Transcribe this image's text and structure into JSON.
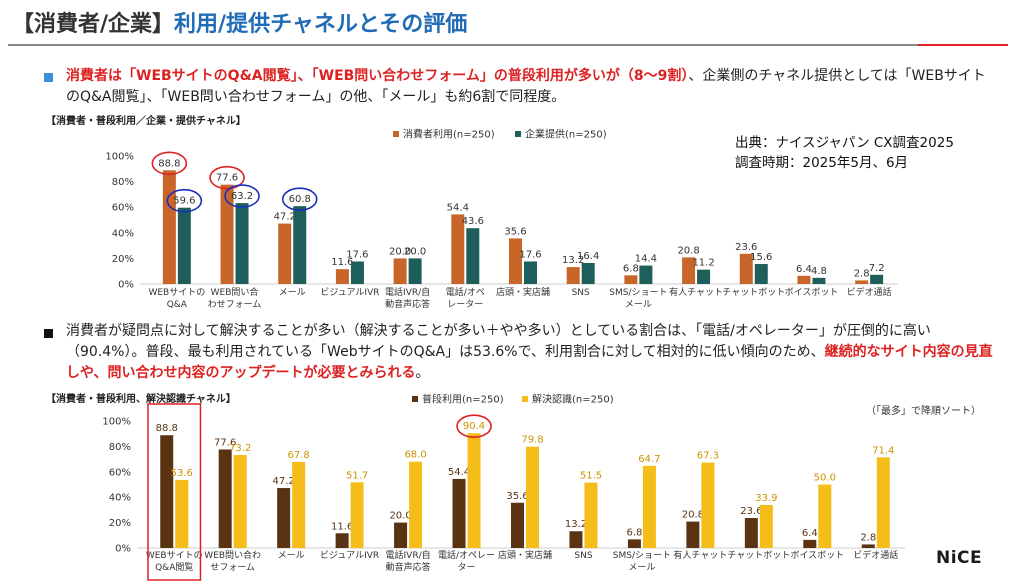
{
  "header": {
    "title_part1": "【消費者/企業】",
    "title_part2": "利用/提供チャネルとその評価"
  },
  "section1": {
    "text_red": "消費者は「WEBサイトのQ&A閲覧」、「WEB問い合わせフォーム」の普段利用が多いが（8～9割）",
    "text_rest": "、企業側のチャネル提供としては「WEBサイトのQ&A閲覧」、「WEB問い合わせフォーム」の他、「メール」も約6割で同程度。",
    "chart_label": "【消費者・普段利用／企業・提供チャネル】"
  },
  "source": {
    "line1": "出典：ナイスジャパン CX調査2025",
    "line2": "調査時期：2025年5月、6月"
  },
  "section2": {
    "text_normal": "消費者が疑問点に対して解決することが多い（解決することが多い＋やや多い）としている割合は、「電話/オペレーター」が圧倒的に高い（90.4%）。普段、最も利用されている「WebサイトのQ&A」は53.6%で、利用割合に対して相対的に低い傾向のため、",
    "text_red": "継続的なサイト内容の見直しや、問い合わせ内容のアップデートが必要とみられる",
    "text_end": "。",
    "chart_label": "【消費者・普段利用、解決認識チャネル】",
    "note": "（「最多」で降順ソート）"
  },
  "logo": "NiCE",
  "colors": {
    "consumer": "#c8662a",
    "company": "#1f5f5b",
    "usage": "#5a3313",
    "resolution": "#f5bd1a",
    "highlight_red": "#d22",
    "highlight_blue": "#1a2fb8",
    "title_blue": "#1f6bb5"
  },
  "chart_data": [
    {
      "type": "bar",
      "categories": [
        "WEBサイトの\nQ&A",
        "WEB問い合\nわせフォーム",
        "メール",
        "ビジュアルIVR",
        "電話IVR/自\n動音声応答",
        "電話/オペ\nレーター",
        "店頭・実店舗",
        "SNS",
        "SMS/ショート\nメール",
        "有人チャット",
        "チャットボット",
        "ボイスボット",
        "ビデオ通話"
      ],
      "series": [
        {
          "name": "消費者利用(n=250)",
          "values": [
            88.8,
            77.6,
            47.2,
            11.6,
            20.0,
            54.4,
            35.6,
            13.2,
            6.8,
            20.8,
            23.6,
            6.4,
            2.8
          ]
        },
        {
          "name": "企業提供(n=250)",
          "values": [
            59.6,
            63.2,
            60.8,
            17.6,
            20.0,
            43.6,
            17.6,
            16.4,
            14.4,
            11.2,
            15.6,
            4.8,
            7.2
          ]
        }
      ],
      "yticks": [
        "0%",
        "20%",
        "40%",
        "60%",
        "80%",
        "100%"
      ],
      "ylim": [
        0,
        100
      ],
      "legend": "top"
    },
    {
      "type": "bar",
      "categories": [
        "WEBサイトの\nQ&A閲覧",
        "WEB問い合わ\nせフォーム",
        "メール",
        "ビジュアルIVR",
        "電話IVR/自\n動音声応答",
        "電話/オペレー\nター",
        "店頭・実店舗",
        "SNS",
        "SMS/ショート\nメール",
        "有人チャット",
        "チャットボット",
        "ボイスボット",
        "ビデオ通話"
      ],
      "series": [
        {
          "name": "普段利用(n=250)",
          "values": [
            88.8,
            77.6,
            47.2,
            11.6,
            20.0,
            54.4,
            35.6,
            13.2,
            6.8,
            20.8,
            23.6,
            6.4,
            2.8
          ]
        },
        {
          "name": "解決認識(n=250)",
          "values": [
            53.6,
            73.2,
            67.8,
            51.7,
            68.0,
            90.4,
            79.8,
            51.5,
            64.7,
            67.3,
            33.9,
            50.0,
            71.4
          ]
        }
      ],
      "yticks": [
        "0%",
        "20%",
        "40%",
        "60%",
        "80%",
        "100%"
      ],
      "ylim": [
        0,
        100
      ],
      "legend": "top"
    }
  ]
}
